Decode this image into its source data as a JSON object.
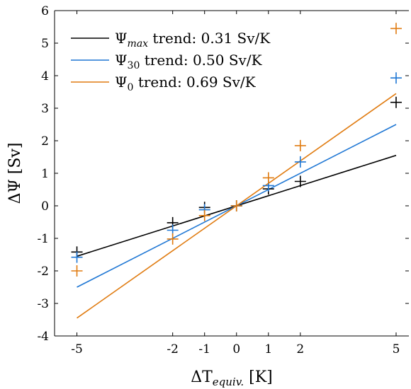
{
  "chart_data": {
    "type": "scatter",
    "xlabel": {
      "base": "ΔT",
      "sub": "equiv.",
      "unit": " [K]"
    },
    "ylabel": {
      "base": "ΔΨ",
      "unit": " [Sv]"
    },
    "xlim": [
      -5.7,
      5.4
    ],
    "ylim": [
      -4,
      6
    ],
    "xticks": [
      -5,
      -2,
      -1,
      0,
      1,
      2,
      5
    ],
    "yticks": [
      -4,
      -3,
      -2,
      -1,
      0,
      1,
      2,
      3,
      4,
      5,
      6
    ],
    "grid": false,
    "legend_position": "top-left",
    "series": [
      {
        "legend": {
          "sym": "Ψ",
          "sub": "max",
          "sub_italic": true,
          "rest": " trend: 0.31 Sv/K"
        },
        "color": "#000000",
        "slope": 0.31,
        "points": [
          {
            "x": -5,
            "y": -1.42
          },
          {
            "x": -2,
            "y": -0.52
          },
          {
            "x": -1,
            "y": -0.05
          },
          {
            "x": 0,
            "y": 0.0
          },
          {
            "x": 1,
            "y": 0.52
          },
          {
            "x": 2,
            "y": 0.75
          },
          {
            "x": 5,
            "y": 3.18
          }
        ]
      },
      {
        "legend": {
          "sym": "Ψ",
          "sub": "30",
          "sub_italic": false,
          "rest": " trend: 0.50 Sv/K"
        },
        "color": "#1f77d4",
        "slope": 0.5,
        "points": [
          {
            "x": -5,
            "y": -1.58
          },
          {
            "x": -2,
            "y": -0.75
          },
          {
            "x": -1,
            "y": -0.12
          },
          {
            "x": 0,
            "y": 0.0
          },
          {
            "x": 1,
            "y": 0.62
          },
          {
            "x": 2,
            "y": 1.35
          },
          {
            "x": 5,
            "y": 3.93
          }
        ]
      },
      {
        "legend": {
          "sym": "Ψ",
          "sub": "0",
          "sub_italic": false,
          "rest": " trend: 0.69 Sv/K"
        },
        "color": "#e07b10",
        "slope": 0.69,
        "points": [
          {
            "x": -5,
            "y": -2.0
          },
          {
            "x": -2,
            "y": -1.02
          },
          {
            "x": -1,
            "y": -0.3
          },
          {
            "x": 0,
            "y": 0.0
          },
          {
            "x": 1,
            "y": 0.86
          },
          {
            "x": 2,
            "y": 1.85
          },
          {
            "x": 5,
            "y": 5.45
          }
        ]
      }
    ]
  }
}
